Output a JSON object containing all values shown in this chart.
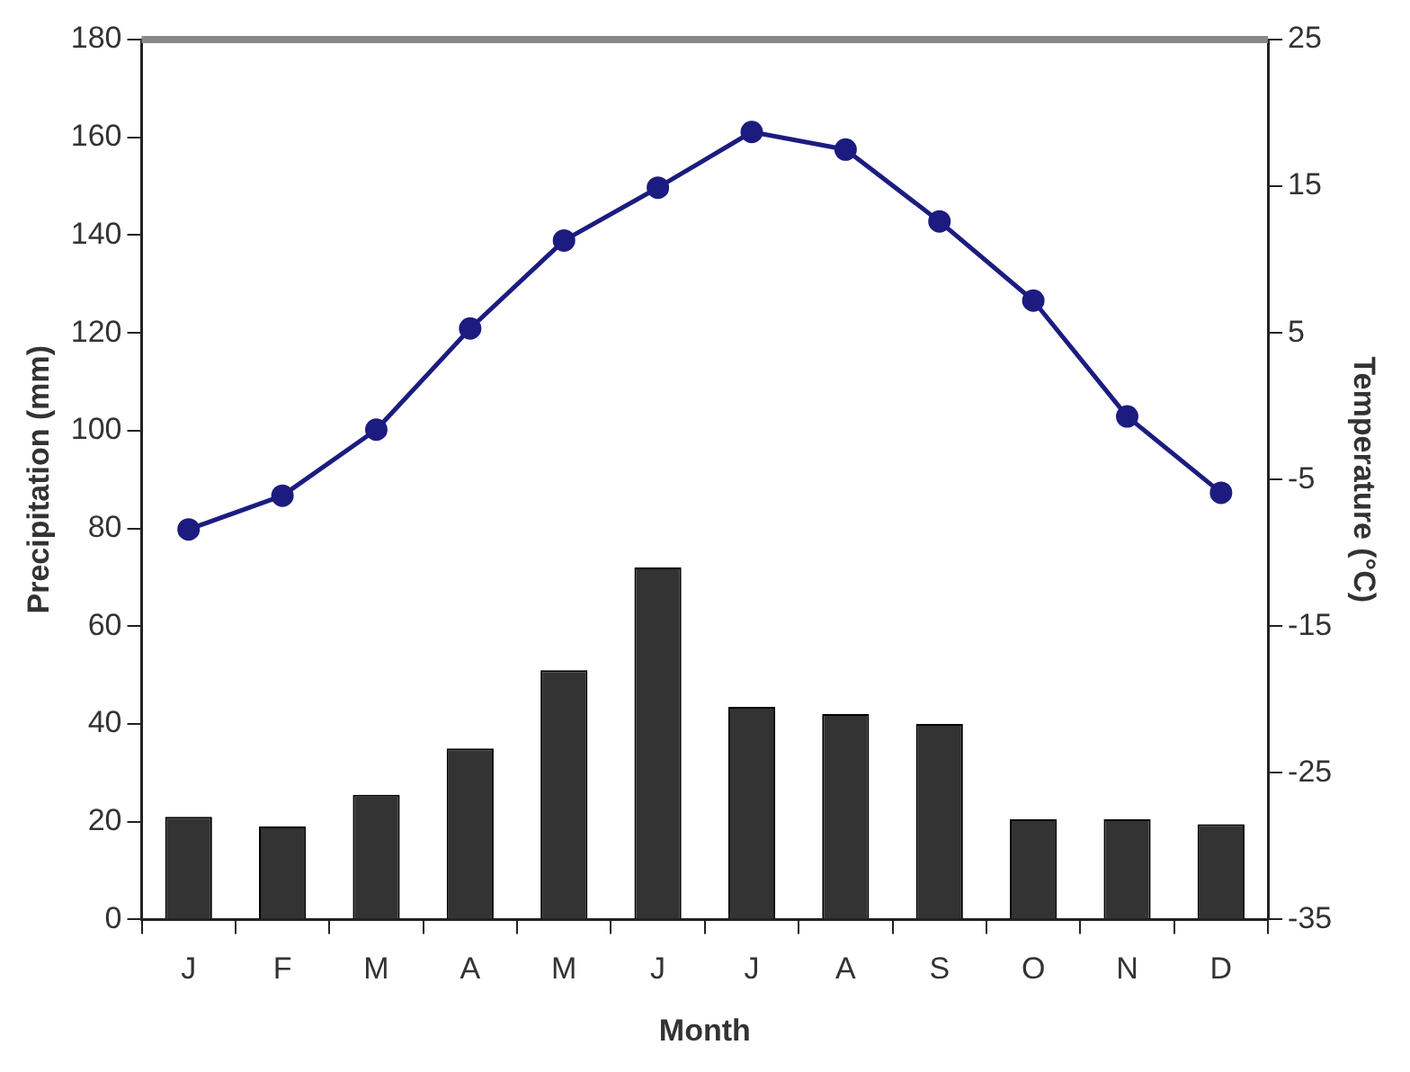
{
  "chart_data": {
    "type": "bar",
    "xlabel": "Month",
    "ylabel": "Precipitation (mm)",
    "y2label": "Temperature (°C)",
    "categories": [
      "J",
      "F",
      "M",
      "A",
      "M",
      "J",
      "J",
      "A",
      "S",
      "O",
      "N",
      "D"
    ],
    "series": [
      {
        "color": "#333333",
        "values": [
          21,
          19,
          25.5,
          35,
          51,
          72,
          43.5,
          42,
          40,
          20.5,
          20.5,
          19.5
        ]
      },
      {
        "type": "line",
        "axis": "y2",
        "color": "#1c1c80",
        "values": [
          -8.4,
          -6.1,
          -1.6,
          5.3,
          11.3,
          14.9,
          18.7,
          17.5,
          12.6,
          7.2,
          -0.7,
          -5.9
        ]
      }
    ],
    "ylim": [
      0,
      180
    ],
    "yticks": [
      0,
      20,
      40,
      60,
      80,
      100,
      120,
      140,
      160,
      180
    ],
    "y2lim": [
      -35,
      25
    ],
    "y2ticks": [
      -35,
      -25,
      -15,
      -5,
      5,
      15,
      25
    ],
    "marker": "circle",
    "line_style": "solid",
    "grid": false,
    "legend": false
  }
}
